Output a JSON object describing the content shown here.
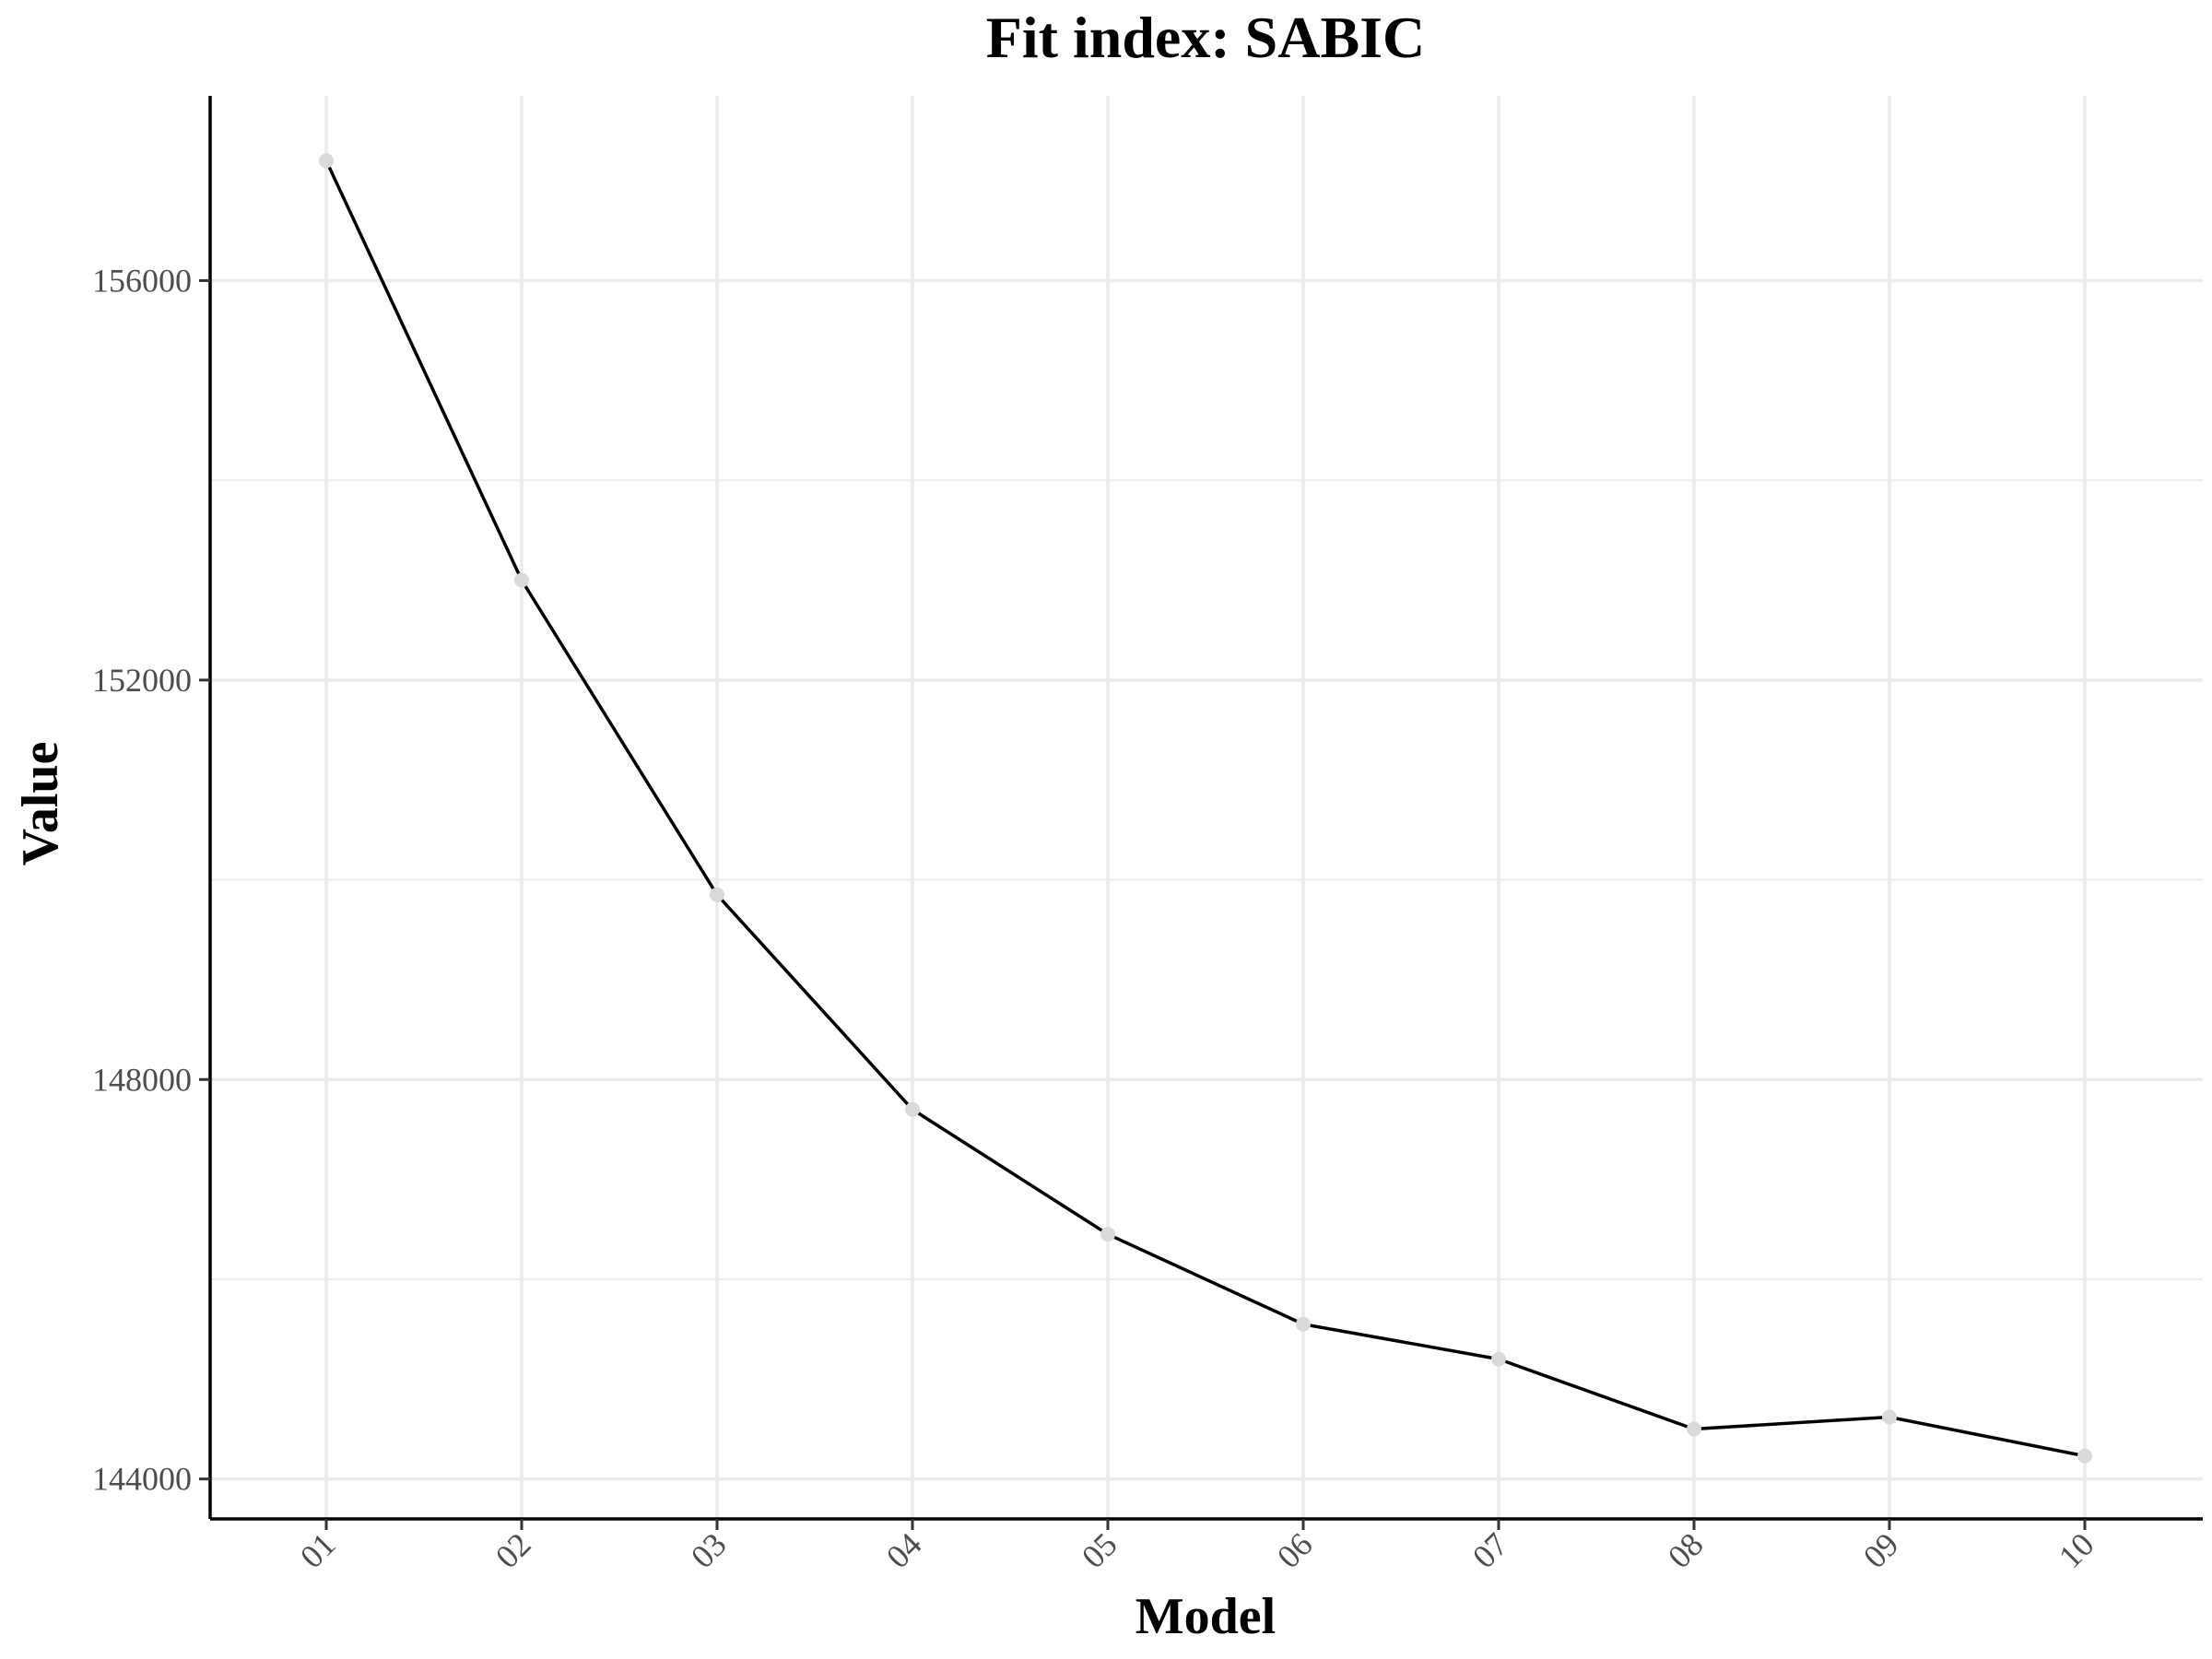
{
  "chart_data": {
    "type": "line",
    "title": "Fit index: SABIC",
    "xlabel": "Model",
    "ylabel": "Value",
    "categories": [
      "01",
      "02",
      "03",
      "04",
      "05",
      "06",
      "07",
      "08",
      "09",
      "10"
    ],
    "values": [
      157200,
      153000,
      149850,
      147700,
      146450,
      145550,
      145200,
      144500,
      144620,
      144230
    ],
    "yticks": [
      "144000",
      "148000",
      "152000",
      "156000"
    ],
    "ylim": [
      143600,
      157850
    ],
    "grid": true,
    "point_color": "#d9d9d9",
    "line_color": "#000000",
    "grid_color": "#ebebeb"
  }
}
